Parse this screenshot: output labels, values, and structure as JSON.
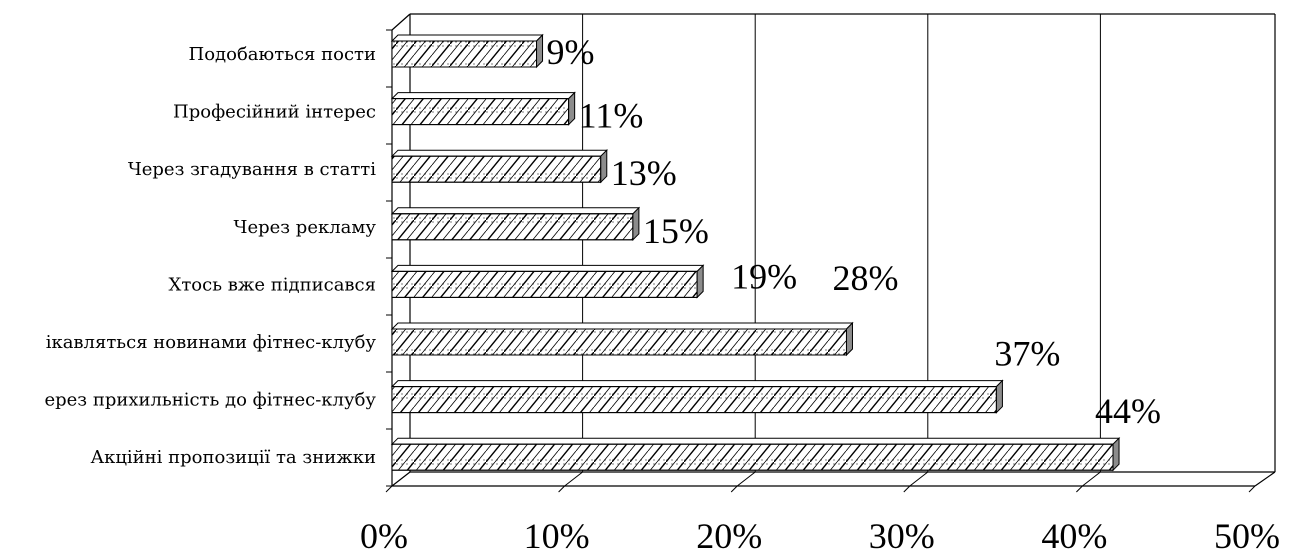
{
  "chart_data": {
    "type": "bar",
    "orientation": "horizontal",
    "style": "3d",
    "categories": [
      "Подобаються пости",
      "Професійний інтерес",
      "Через згадування в статті",
      "Через рекламу",
      "Хтось вже підписався",
      "ікавляться новинами фітнес-клубу",
      "ерез прихильність до фітнес-клубу",
      "Акційні пропозиції та знижки"
    ],
    "values": [
      9,
      11,
      13,
      15,
      19,
      28,
      37,
      44
    ],
    "data_labels": [
      "9%",
      "11%",
      "13%",
      "15%",
      "19%",
      "28%",
      "37%",
      "44%"
    ],
    "x_ticks": [
      "0%",
      "10%",
      "20%",
      "30%",
      "40%",
      "50%"
    ],
    "xlim": [
      0,
      50
    ],
    "grid": true,
    "legend": "none",
    "bar_fill": "hatched",
    "colors": {
      "bar_face": "#ffffff",
      "bar_side": "#8c8c8c",
      "hatch": "#000000",
      "axis": "#000000",
      "grid": "#000000"
    }
  }
}
